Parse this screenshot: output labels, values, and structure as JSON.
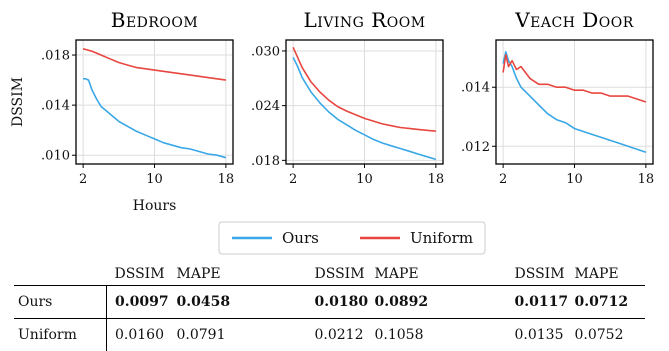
{
  "chart_data": [
    {
      "type": "line",
      "title": "Bedroom",
      "xlabel": "Hours",
      "ylabel": "DSSIM",
      "xlim": [
        1.2,
        18.8
      ],
      "ylim": [
        0.0093,
        0.0192
      ],
      "xticks": [
        {
          "v": 2,
          "label": "2"
        },
        {
          "v": 10,
          "label": "10"
        },
        {
          "v": 18,
          "label": "18"
        }
      ],
      "yticks": [
        {
          "v": 0.01,
          "label": ".010"
        },
        {
          "v": 0.014,
          "label": ".014"
        },
        {
          "v": 0.018,
          "label": ".018"
        }
      ],
      "grid": true,
      "series": [
        {
          "name": "Ours",
          "color": "#3aa7e6",
          "x": [
            2,
            2.3,
            2.6,
            3,
            3.5,
            4,
            5,
            6,
            7,
            8,
            9,
            10,
            11,
            12,
            13,
            14,
            15,
            16,
            17,
            18
          ],
          "y": [
            0.0161,
            0.0161,
            0.016,
            0.0152,
            0.0145,
            0.0139,
            0.0133,
            0.0127,
            0.0123,
            0.0119,
            0.0116,
            0.0113,
            0.011,
            0.0108,
            0.0106,
            0.0105,
            0.0103,
            0.0101,
            0.01,
            0.0098
          ]
        },
        {
          "name": "Uniform",
          "color": "#e8473f",
          "x": [
            2,
            2.5,
            3,
            4,
            5,
            6,
            7,
            8,
            9,
            10,
            11,
            12,
            13,
            14,
            15,
            16,
            17,
            18
          ],
          "y": [
            0.0185,
            0.0184,
            0.0183,
            0.018,
            0.0177,
            0.0174,
            0.0172,
            0.017,
            0.0169,
            0.0168,
            0.0167,
            0.0166,
            0.0165,
            0.0164,
            0.0163,
            0.0162,
            0.0161,
            0.016
          ]
        }
      ]
    },
    {
      "type": "line",
      "title": "Living Room",
      "xlabel": "",
      "ylabel": "",
      "xlim": [
        1.2,
        18.8
      ],
      "ylim": [
        0.0176,
        0.0312
      ],
      "xticks": [
        {
          "v": 2,
          "label": "2"
        },
        {
          "v": 10,
          "label": "10"
        },
        {
          "v": 18,
          "label": "18"
        }
      ],
      "yticks": [
        {
          "v": 0.018,
          "label": ".018"
        },
        {
          "v": 0.024,
          "label": ".024"
        },
        {
          "v": 0.03,
          "label": ".030"
        }
      ],
      "grid": true,
      "series": [
        {
          "name": "Ours",
          "color": "#3aa7e6",
          "x": [
            2,
            2.5,
            3,
            4,
            5,
            6,
            7,
            8,
            9,
            10,
            11,
            12,
            13,
            14,
            15,
            16,
            17,
            18
          ],
          "y": [
            0.0293,
            0.0283,
            0.0271,
            0.0255,
            0.0243,
            0.0233,
            0.0225,
            0.0219,
            0.0213,
            0.0208,
            0.0203,
            0.0199,
            0.0196,
            0.0193,
            0.019,
            0.0187,
            0.0184,
            0.0181
          ]
        },
        {
          "name": "Uniform",
          "color": "#e8473f",
          "x": [
            2,
            2.5,
            3,
            4,
            5,
            6,
            7,
            8,
            9,
            10,
            11,
            12,
            13,
            14,
            15,
            16,
            17,
            18
          ],
          "y": [
            0.0304,
            0.0293,
            0.0282,
            0.0266,
            0.0255,
            0.0246,
            0.0239,
            0.0234,
            0.023,
            0.0226,
            0.0223,
            0.022,
            0.0218,
            0.0216,
            0.0215,
            0.0214,
            0.0213,
            0.0212
          ]
        }
      ]
    },
    {
      "type": "line",
      "title": "Veach Door",
      "xlabel": "",
      "ylabel": "",
      "xlim": [
        1.2,
        18.8
      ],
      "ylim": [
        0.0114,
        0.0156
      ],
      "xticks": [
        {
          "v": 2,
          "label": "2"
        },
        {
          "v": 10,
          "label": "10"
        },
        {
          "v": 18,
          "label": "18"
        }
      ],
      "yticks": [
        {
          "v": 0.012,
          "label": ".012"
        },
        {
          "v": 0.014,
          "label": ".014"
        }
      ],
      "grid": true,
      "series": [
        {
          "name": "Ours",
          "color": "#3aa7e6",
          "x": [
            2,
            2.3,
            2.6,
            3,
            3.5,
            4,
            5,
            6,
            7,
            8,
            9,
            10,
            11,
            12,
            13,
            14,
            15,
            16,
            17,
            18
          ],
          "y": [
            0.0148,
            0.0152,
            0.0149,
            0.0147,
            0.0143,
            0.014,
            0.0137,
            0.0134,
            0.0131,
            0.0129,
            0.0128,
            0.0126,
            0.0125,
            0.0124,
            0.0123,
            0.0122,
            0.0121,
            0.012,
            0.0119,
            0.0118
          ]
        },
        {
          "name": "Uniform",
          "color": "#e8473f",
          "x": [
            2,
            2.3,
            2.6,
            3,
            3.5,
            4,
            5,
            6,
            7,
            8,
            9,
            10,
            11,
            12,
            13,
            14,
            15,
            16,
            17,
            18
          ],
          "y": [
            0.0145,
            0.0151,
            0.0147,
            0.0149,
            0.0146,
            0.0147,
            0.0143,
            0.0141,
            0.0141,
            0.014,
            0.014,
            0.0139,
            0.0139,
            0.0138,
            0.0138,
            0.0137,
            0.0137,
            0.0137,
            0.0136,
            0.0135
          ]
        }
      ]
    }
  ],
  "legend": {
    "placement": "bottom-center",
    "items": [
      {
        "label": "Ours",
        "color": "#3aa7e6"
      },
      {
        "label": "Uniform",
        "color": "#e8473f"
      }
    ]
  },
  "table": {
    "columns": [
      "DSSIM",
      "MAPE"
    ],
    "scenes": [
      "Bedroom",
      "Living Room",
      "Veach Door"
    ],
    "rows": [
      {
        "label": "Ours",
        "bold": true,
        "values": [
          [
            "0.0097",
            "0.0458"
          ],
          [
            "0.0180",
            "0.0892"
          ],
          [
            "0.0117",
            "0.0712"
          ]
        ]
      },
      {
        "label": "Uniform",
        "bold": false,
        "values": [
          [
            "0.0160",
            "0.0791"
          ],
          [
            "0.0212",
            "0.1058"
          ],
          [
            "0.0135",
            "0.0752"
          ]
        ]
      }
    ]
  }
}
